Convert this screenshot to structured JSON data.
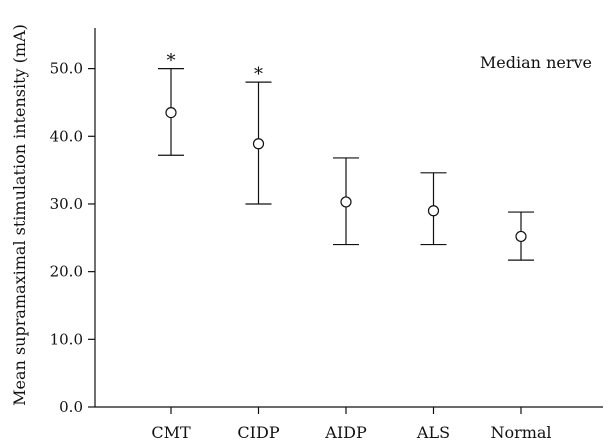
{
  "chart_data": {
    "type": "scatter",
    "title": "",
    "annotation": "Median nerve",
    "xlabel": "",
    "ylabel": "Mean supramaximal stimulation intensity (mA)",
    "ylim": [
      0,
      56
    ],
    "yticks": [
      0,
      10,
      20,
      30,
      40,
      50
    ],
    "ytick_labels": [
      "0.0",
      "10.0",
      "20.0",
      "30.0",
      "40.0",
      "50.0"
    ],
    "grid": false,
    "categories": [
      "CMT",
      "CIDP",
      "AIDP",
      "ALS",
      "Normal"
    ],
    "series": [
      {
        "name": "",
        "values": [
          43.5,
          38.9,
          30.3,
          29.0,
          25.2
        ],
        "error_low": [
          37.2,
          30.0,
          24.0,
          24.0,
          21.7
        ],
        "error_high": [
          50.0,
          48.0,
          36.8,
          34.6,
          28.8
        ],
        "significance": [
          "*",
          "*",
          "",
          "",
          ""
        ]
      }
    ]
  }
}
